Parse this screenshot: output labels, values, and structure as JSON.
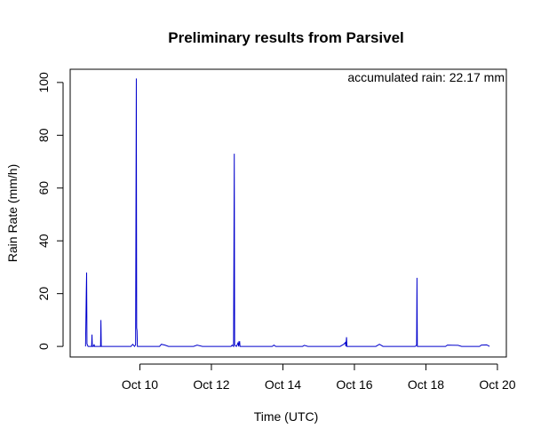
{
  "chart_data": {
    "type": "line",
    "title": "Preliminary results from Parsivel",
    "xlabel": "Time (UTC)",
    "ylabel": "Rain Rate (mm/h)",
    "annotation": "accumulated rain: 22.17 mm",
    "x_ticks": [
      "Oct 10",
      "Oct 12",
      "Oct 14",
      "Oct 16",
      "Oct 18",
      "Oct 20"
    ],
    "x_tick_days": [
      10,
      12,
      14,
      16,
      18,
      20
    ],
    "y_ticks": [
      "0",
      "20",
      "40",
      "60",
      "80",
      "100"
    ],
    "y_tick_values": [
      0,
      20,
      40,
      60,
      80,
      100
    ],
    "xlim": [
      8.05,
      20.25
    ],
    "ylim": [
      -4,
      105
    ],
    "grid": false,
    "colors": {
      "series": "#0000cc",
      "axis": "#000000"
    },
    "series": [
      {
        "x_unit": "day of October (UTC)",
        "points": [
          [
            8.48,
            0
          ],
          [
            8.5,
            20
          ],
          [
            8.51,
            28
          ],
          [
            8.52,
            1
          ],
          [
            8.55,
            0
          ],
          [
            8.65,
            0
          ],
          [
            8.66,
            4.5
          ],
          [
            8.67,
            0
          ],
          [
            8.7,
            0
          ],
          [
            8.72,
            0.8
          ],
          [
            8.73,
            0
          ],
          [
            8.9,
            0
          ],
          [
            8.91,
            10
          ],
          [
            8.92,
            0
          ],
          [
            9.75,
            0
          ],
          [
            9.8,
            0.8
          ],
          [
            9.85,
            0
          ],
          [
            9.88,
            0.6
          ],
          [
            9.9,
            101.5
          ],
          [
            9.91,
            7
          ],
          [
            9.92,
            6
          ],
          [
            9.93,
            0
          ],
          [
            10.55,
            0
          ],
          [
            10.6,
            0.8
          ],
          [
            10.7,
            0.5
          ],
          [
            10.8,
            0
          ],
          [
            11.5,
            0
          ],
          [
            11.6,
            0.5
          ],
          [
            11.75,
            0
          ],
          [
            12.55,
            0
          ],
          [
            12.58,
            0.5
          ],
          [
            12.62,
            0
          ],
          [
            12.64,
            73
          ],
          [
            12.65,
            0.5
          ],
          [
            12.7,
            0
          ],
          [
            12.75,
            1.5
          ],
          [
            12.76,
            0
          ],
          [
            12.79,
            2
          ],
          [
            12.8,
            0
          ],
          [
            13.7,
            0
          ],
          [
            13.75,
            0.5
          ],
          [
            13.8,
            0
          ],
          [
            14.55,
            0
          ],
          [
            14.6,
            0.4
          ],
          [
            14.7,
            0
          ],
          [
            15.6,
            0
          ],
          [
            15.7,
            0.8
          ],
          [
            15.75,
            1.5
          ],
          [
            15.76,
            0
          ],
          [
            15.78,
            3.5
          ],
          [
            15.79,
            0
          ],
          [
            16.6,
            0
          ],
          [
            16.7,
            0.8
          ],
          [
            16.8,
            0
          ],
          [
            17.7,
            0
          ],
          [
            17.74,
            0.5
          ],
          [
            17.75,
            26
          ],
          [
            17.76,
            0
          ],
          [
            18.55,
            0
          ],
          [
            18.6,
            0.5
          ],
          [
            18.9,
            0.4
          ],
          [
            19.0,
            0
          ],
          [
            19.5,
            0
          ],
          [
            19.55,
            0.5
          ],
          [
            19.7,
            0.6
          ],
          [
            19.78,
            0
          ]
        ]
      }
    ]
  }
}
